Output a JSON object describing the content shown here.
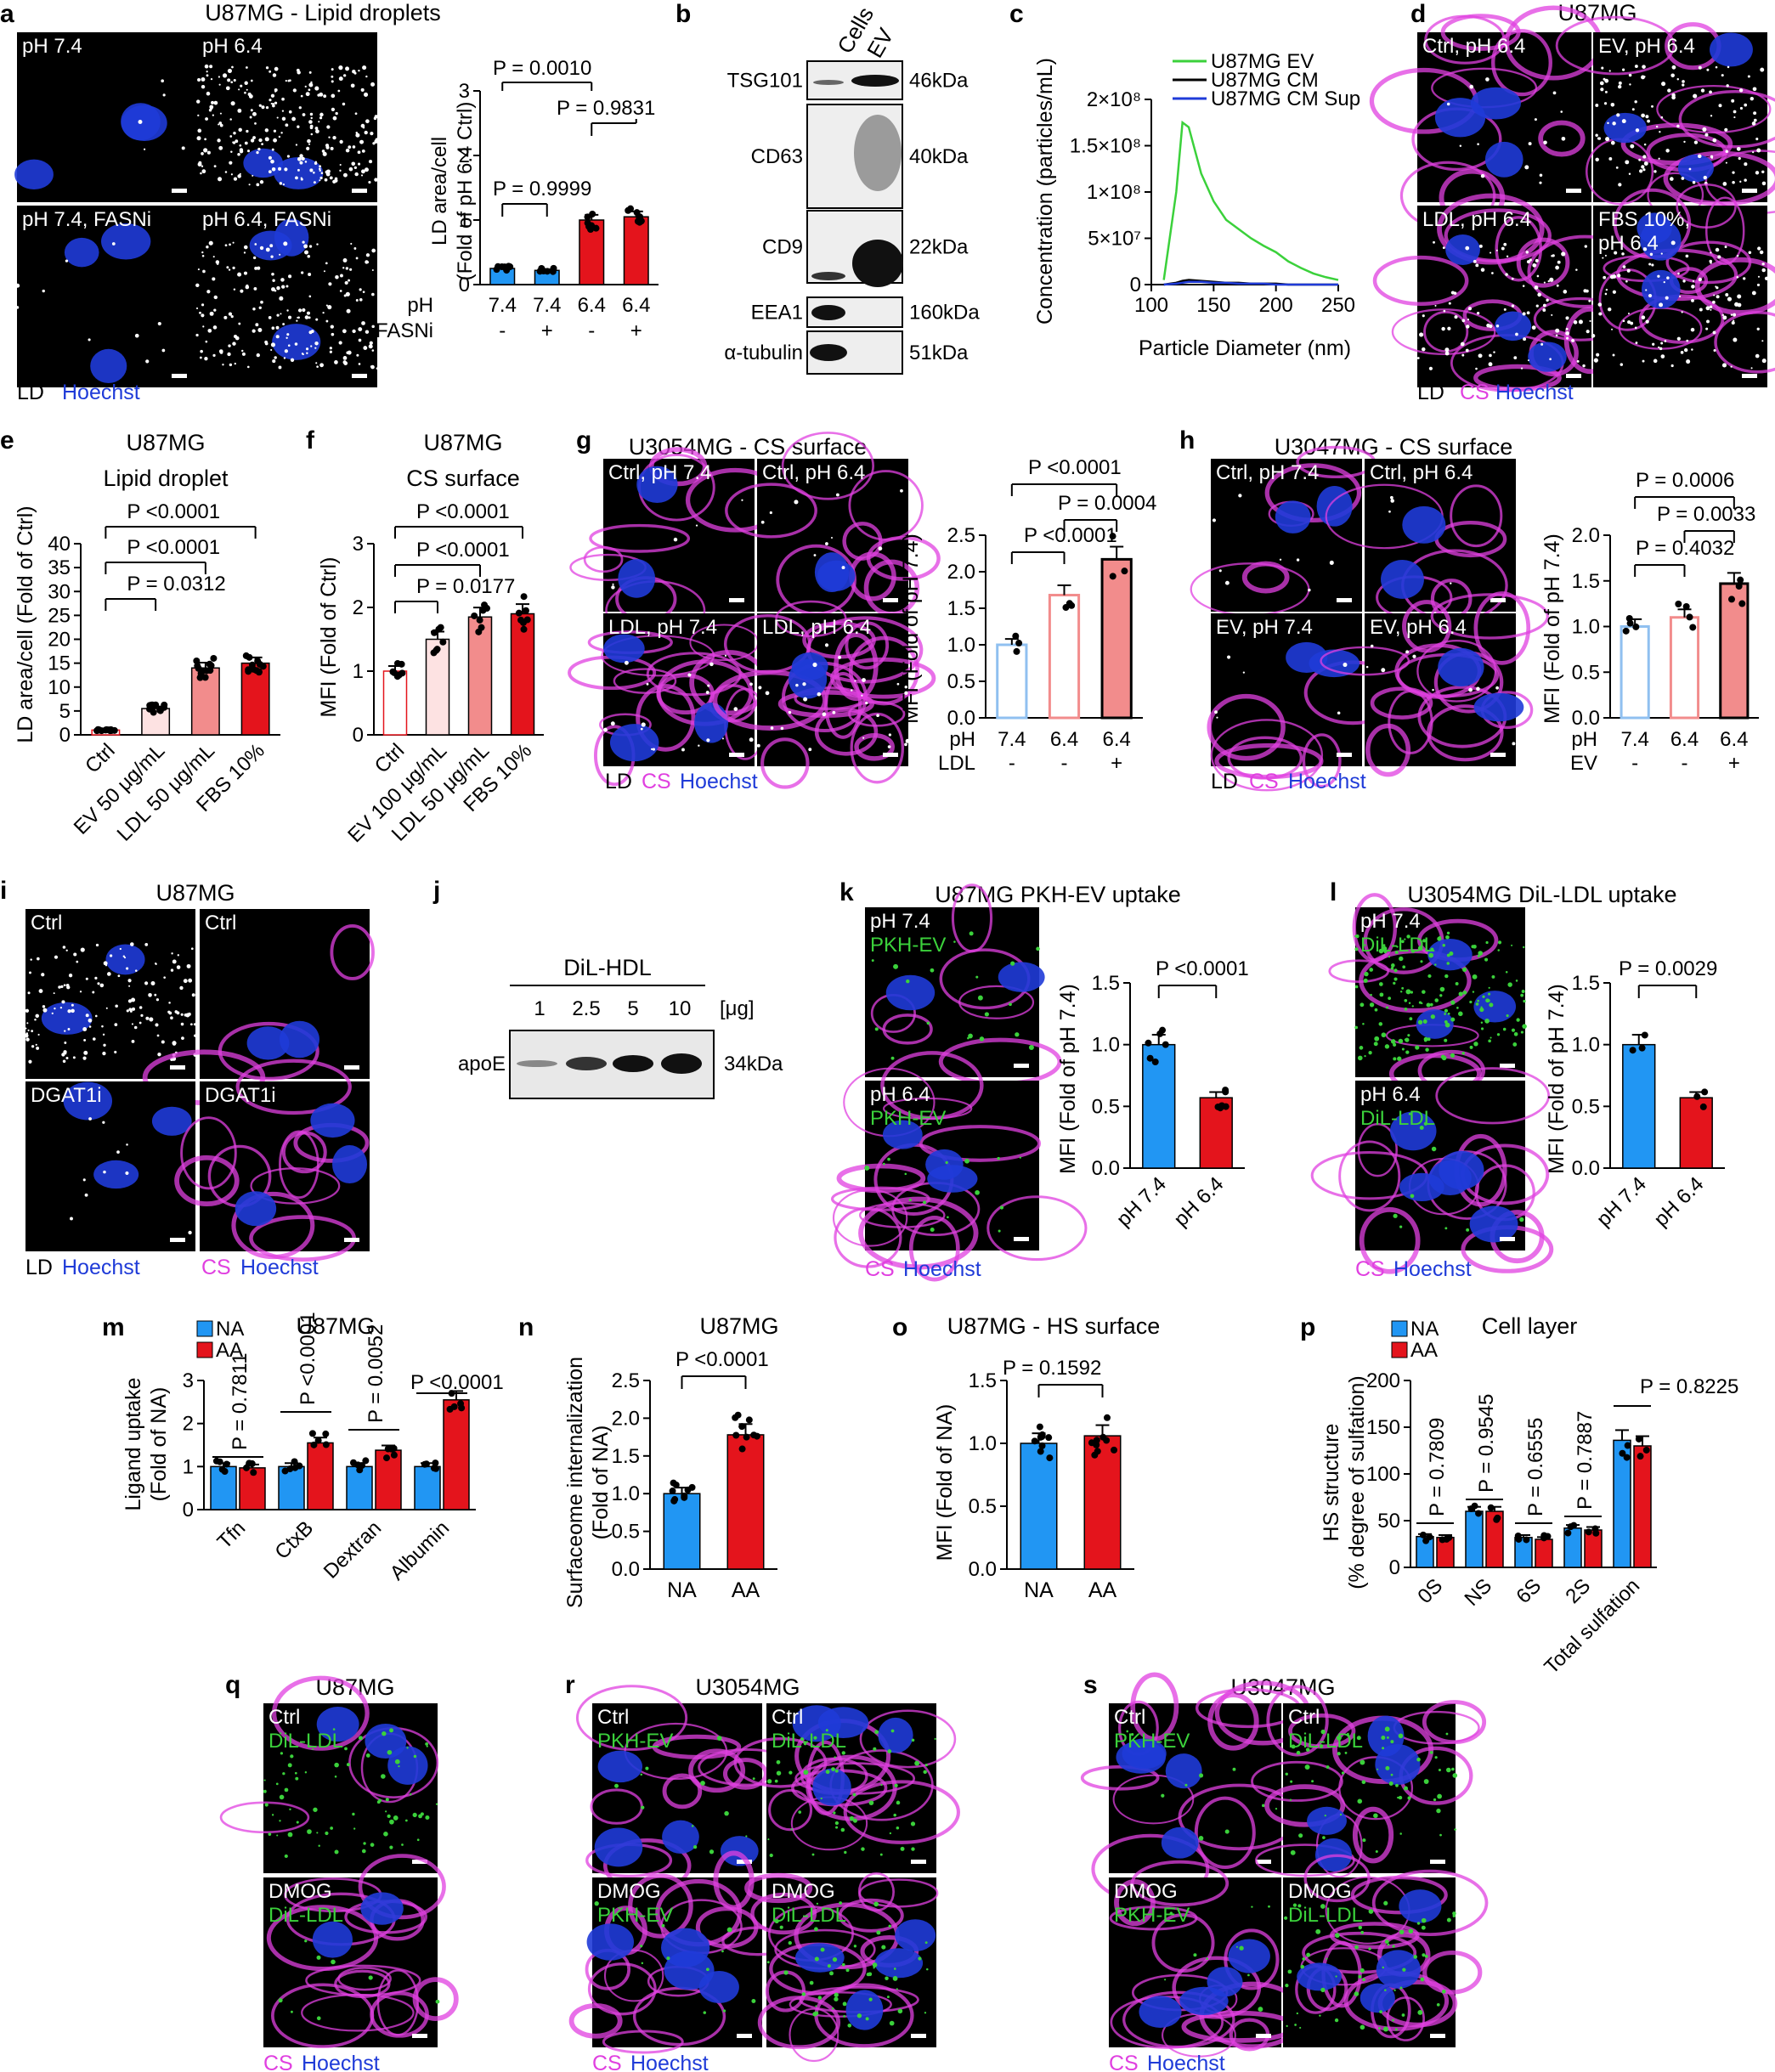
{
  "colors": {
    "blue_bar": "#2196f3",
    "red_bar": "#e4141c",
    "light_red": "#f28c8c",
    "pale_red": "#fde2e2",
    "pale_blue": "#ffffff",
    "magenta": "#e040e0",
    "green": "#3bd13b",
    "hoechst": "#1f3bd8"
  },
  "panels": {
    "a": {
      "letter": "a",
      "title": "U87MG - Lipid droplets",
      "images": [
        "pH 7.4",
        "pH 6.4",
        "pH 7.4, FASNi",
        "pH 6.4, FASNi"
      ],
      "legend": {
        "ld": "LD",
        "hoechst": "Hoechst"
      },
      "ylabel1": "LD area/cell",
      "ylabel2": "(Fold of pH 6.4 Ctrl)",
      "row1_label": "pH",
      "row1": [
        "7.4",
        "7.4",
        "6.4",
        "6.4"
      ],
      "row2_label": "FASNi",
      "row2": [
        "-",
        "+",
        "-",
        "+"
      ],
      "pvals": [
        "P = 0.0010",
        "P = 0.9831",
        "P = 0.9999"
      ]
    },
    "b": {
      "letter": "b",
      "cols": [
        "Cells",
        "EV"
      ],
      "rows": [
        "TSG101",
        "CD63",
        "CD9",
        "EEA1",
        "α-tubulin"
      ],
      "kda": [
        "46kDa",
        "40kDa",
        "22kDa",
        "160kDa",
        "51kDa"
      ]
    },
    "c": {
      "letter": "c",
      "ylabel": "Concentration (particles/mL)",
      "xlabel": "Particle Diameter (nm)",
      "legend": [
        "U87MG EV",
        "U87MG CM",
        "U87MG CM Sup"
      ]
    },
    "d": {
      "letter": "d",
      "title": "U87MG",
      "images": [
        "Ctrl, pH 6.4",
        "EV, pH 6.4",
        "LDL, pH 6.4",
        "FBS 10%,",
        "pH 6.4"
      ],
      "legend": {
        "ld": "LD",
        "cs": "CS",
        "hoechst": "Hoechst"
      }
    },
    "e": {
      "letter": "e",
      "title1": "U87MG",
      "title2": "Lipid droplet",
      "ylabel": "LD area/cell (Fold of Ctrl)",
      "pvals": [
        "P <0.0001",
        "P <0.0001",
        "P = 0.0312"
      ]
    },
    "f": {
      "letter": "f",
      "title1": "U87MG",
      "title2": "CS surface",
      "ylabel": "MFI (Fold of Ctrl)",
      "pvals": [
        "P <0.0001",
        "P <0.0001",
        "P = 0.0177"
      ]
    },
    "g": {
      "letter": "g",
      "title": "U3054MG - CS surface",
      "images": [
        "Ctrl, pH 7.4",
        "Ctrl, pH 6.4",
        "LDL, pH 7.4",
        "LDL, pH 6.4"
      ],
      "legend": {
        "ld": "LD",
        "cs": "CS",
        "hoechst": "Hoechst"
      },
      "ylabel": "MFI (Fold of pH 7.4)",
      "row1_label": "pH",
      "row1": [
        "7.4",
        "6.4",
        "6.4"
      ],
      "row2_label": "LDL",
      "row2": [
        "-",
        "-",
        "+"
      ],
      "pvals": [
        "P <0.0001",
        "P = 0.0004",
        "P <0.0001"
      ]
    },
    "h": {
      "letter": "h",
      "title": "U3047MG - CS surface",
      "images": [
        "Ctrl, pH 7.4",
        "Ctrl, pH 6.4",
        "EV, pH 7.4",
        "EV, pH 6.4"
      ],
      "legend": {
        "ld": "LD",
        "cs": "CS",
        "hoechst": "Hoechst"
      },
      "ylabel": "MFI (Fold of pH 7.4)",
      "row1_label": "pH",
      "row1": [
        "7.4",
        "6.4",
        "6.4"
      ],
      "row2_label": "EV",
      "row2": [
        "-",
        "-",
        "+"
      ],
      "pvals": [
        "P = 0.0006",
        "P = 0.0033",
        "P = 0.4032"
      ]
    },
    "i": {
      "letter": "i",
      "title": "U87MG",
      "images": [
        "Ctrl",
        "Ctrl",
        "DGAT1i",
        "DGAT1i"
      ],
      "legend1": {
        "ld": "LD",
        "hoechst": "Hoechst"
      },
      "legend2": {
        "cs": "CS",
        "hoechst": "Hoechst"
      }
    },
    "j": {
      "letter": "j",
      "title": "DiL-HDL",
      "lanes": [
        "1",
        "2.5",
        "5",
        "10"
      ],
      "unit": "[μg]",
      "row": "apoE",
      "kda": "34kDa"
    },
    "k": {
      "letter": "k",
      "title": "U87MG PKH-EV uptake",
      "images": [
        [
          "pH 7.4",
          "PKH-EV"
        ],
        [
          "pH 6.4",
          "PKH-EV"
        ]
      ],
      "legend": {
        "cs": "CS",
        "hoechst": "Hoechst"
      },
      "ylabel": "MFI (Fold of pH 7.4)",
      "pval": "P <0.0001"
    },
    "l": {
      "letter": "l",
      "title": "U3054MG  DiL-LDL uptake",
      "images": [
        [
          "pH 7.4",
          "DiL-LDL"
        ],
        [
          "pH 6.4",
          "DiL-LDL"
        ]
      ],
      "legend": {
        "cs": "CS",
        "hoechst": "Hoechst"
      },
      "ylabel": "MFI (Fold of pH 7.4)",
      "pval": "P = 0.0029"
    },
    "m": {
      "letter": "m",
      "title": "U87MG",
      "ylabel1": "Ligand uptake",
      "ylabel2": "(Fold of NA)",
      "legend": [
        "NA",
        "AA"
      ],
      "pvals": [
        "P = 0.7811",
        "P <0.0001",
        "P = 0.0052",
        "P <0.0001"
      ]
    },
    "n": {
      "letter": "n",
      "title": "U87MG",
      "ylabel1": "Surfaceome internalization",
      "ylabel2": "(Fold of NA)",
      "pval": "P <0.0001"
    },
    "o": {
      "letter": "o",
      "title": "U87MG - HS surface",
      "ylabel": "MFI (Fold of NA)",
      "pval": "P = 0.1592"
    },
    "p": {
      "letter": "p",
      "title": "Cell layer",
      "ylabel1": "HS structure",
      "ylabel2": "(% degree of sulfation)",
      "legend": [
        "NA",
        "AA"
      ],
      "pvals": [
        "P = 0.7809",
        "P = 0.9545",
        "P = 0.6555",
        "P = 0.7887",
        "P = 0.8225"
      ]
    },
    "q": {
      "letter": "q",
      "title": "U87MG",
      "images": [
        [
          "Ctrl",
          "DiL-LDL"
        ],
        [
          "DMOG",
          "DiL-LDL"
        ]
      ],
      "legend": {
        "cs": "CS",
        "hoechst": "Hoechst"
      }
    },
    "r": {
      "letter": "r",
      "title": "U3054MG",
      "images": [
        [
          "Ctrl",
          "PKH-EV"
        ],
        [
          "Ctrl",
          "DiL-LDL"
        ],
        [
          "DMOG",
          "PKH-EV"
        ],
        [
          "DMOG",
          "DiL-LDL"
        ]
      ],
      "legend": {
        "cs": "CS",
        "hoechst": "Hoechst"
      }
    },
    "s": {
      "letter": "s",
      "title": "U3047MG",
      "images": [
        [
          "Ctrl",
          "PKH-EV"
        ],
        [
          "Ctrl",
          "DiL-LDL"
        ],
        [
          "DMOG",
          "PKH-EV"
        ],
        [
          "DMOG",
          "DiL-LDL"
        ]
      ],
      "legend": {
        "cs": "CS",
        "hoechst": "Hoechst"
      }
    }
  },
  "chart_data": [
    {
      "id": "a",
      "type": "bar",
      "categories": [
        "7.4 -",
        "7.4 +",
        "6.4 -",
        "6.4 +"
      ],
      "values": [
        0.25,
        0.22,
        1.0,
        1.05
      ],
      "ylim": [
        0,
        3
      ],
      "yticks": [
        0,
        1,
        2,
        3
      ]
    },
    {
      "id": "c",
      "type": "line",
      "x": [
        110,
        120,
        125,
        130,
        140,
        150,
        160,
        170,
        180,
        190,
        200,
        210,
        220,
        230,
        240,
        250
      ],
      "series": [
        {
          "name": "U87MG EV",
          "values": [
            5000000.0,
            100000000.0,
            175000000.0,
            170000000.0,
            120000000.0,
            90000000.0,
            70000000.0,
            60000000.0,
            50000000.0,
            42000000.0,
            35000000.0,
            25000000.0,
            18000000.0,
            12000000.0,
            8000000.0,
            5000000.0
          ]
        },
        {
          "name": "U87MG CM",
          "values": [
            0,
            2000000.0,
            4000000.0,
            5000000.0,
            4000000.0,
            3000000.0,
            2000000.0,
            2000000.0,
            1000000.0,
            1000000.0,
            1000000.0,
            0,
            0,
            0,
            0,
            0
          ]
        },
        {
          "name": "U87MG CM Sup",
          "values": [
            0,
            1000000.0,
            2000000.0,
            3000000.0,
            3000000.0,
            2000000.0,
            2000000.0,
            1000000.0,
            1000000.0,
            1000000.0,
            0,
            0,
            0,
            0,
            0,
            0
          ]
        }
      ],
      "ylim": [
        0,
        200000000.0
      ],
      "yticks": [
        "0",
        "5×10⁷",
        "1×10⁸",
        "1.5×10⁸",
        "2×10⁸"
      ],
      "xticks": [
        100,
        150,
        200,
        250
      ]
    },
    {
      "id": "e",
      "type": "bar",
      "categories": [
        "Ctrl",
        "EV  50 μg/mL",
        "LDL 50 μg/mL",
        "FBS 10%"
      ],
      "values": [
        1.0,
        5.5,
        14.0,
        15.0
      ],
      "ylim": [
        0,
        40
      ],
      "yticks": [
        0,
        5,
        10,
        15,
        20,
        25,
        30,
        35,
        40
      ]
    },
    {
      "id": "f",
      "type": "bar",
      "categories": [
        "Ctrl",
        "EV  100 μg/mL",
        "LDL 50 μg/mL",
        "FBS 10%"
      ],
      "values": [
        1.0,
        1.5,
        1.85,
        1.9
      ],
      "ylim": [
        0,
        3
      ],
      "yticks": [
        0,
        1,
        2,
        3
      ]
    },
    {
      "id": "g",
      "type": "bar",
      "categories": [
        "7.4 -",
        "6.4 -",
        "6.4 +"
      ],
      "values": [
        1.0,
        1.68,
        2.17
      ],
      "ylim": [
        0,
        2.5
      ],
      "yticks": [
        0.0,
        0.5,
        1.0,
        1.5,
        2.0,
        2.5
      ]
    },
    {
      "id": "h",
      "type": "bar",
      "categories": [
        "7.4 -",
        "6.4 -",
        "6.4 +"
      ],
      "values": [
        1.0,
        1.1,
        1.47
      ],
      "ylim": [
        0,
        2
      ],
      "yticks": [
        0.0,
        0.5,
        1.0,
        1.5,
        2.0
      ]
    },
    {
      "id": "k",
      "type": "bar",
      "categories": [
        "pH 7.4",
        "pH 6.4"
      ],
      "values": [
        1.0,
        0.57
      ],
      "ylim": [
        0,
        1.5
      ],
      "yticks": [
        0.0,
        0.5,
        1.0,
        1.5
      ]
    },
    {
      "id": "l",
      "type": "bar",
      "categories": [
        "pH 7.4",
        "pH 6.4"
      ],
      "values": [
        1.0,
        0.57
      ],
      "ylim": [
        0,
        1.5
      ],
      "yticks": [
        0.0,
        0.5,
        1.0,
        1.5
      ]
    },
    {
      "id": "m",
      "type": "bar",
      "categories": [
        "Tfn",
        "CtxB",
        "Dextran",
        "Albumin"
      ],
      "series": [
        {
          "name": "NA",
          "values": [
            1.0,
            1.0,
            1.0,
            1.0
          ]
        },
        {
          "name": "AA",
          "values": [
            0.97,
            1.55,
            1.38,
            2.55
          ]
        }
      ],
      "ylim": [
        0,
        3
      ],
      "yticks": [
        0,
        1,
        2,
        3
      ]
    },
    {
      "id": "n",
      "type": "bar",
      "categories": [
        "NA",
        "AA"
      ],
      "values": [
        1.0,
        1.78
      ],
      "ylim": [
        0,
        2.5
      ],
      "yticks": [
        0.0,
        0.5,
        1.0,
        1.5,
        2.0,
        2.5
      ]
    },
    {
      "id": "o",
      "type": "bar",
      "categories": [
        "NA",
        "AA"
      ],
      "values": [
        1.0,
        1.06
      ],
      "ylim": [
        0,
        1.5
      ],
      "yticks": [
        0.0,
        0.5,
        1.0,
        1.5
      ]
    },
    {
      "id": "p",
      "type": "bar",
      "categories": [
        "0S",
        "NS",
        "6S",
        "2S",
        "Total sulfation"
      ],
      "series": [
        {
          "name": "NA",
          "values": [
            33,
            60,
            32,
            42,
            136
          ]
        },
        {
          "name": "AA",
          "values": [
            32,
            60,
            30,
            40,
            130
          ]
        }
      ],
      "ylim": [
        0,
        200
      ],
      "yticks": [
        0,
        50,
        100,
        150,
        200
      ]
    }
  ]
}
